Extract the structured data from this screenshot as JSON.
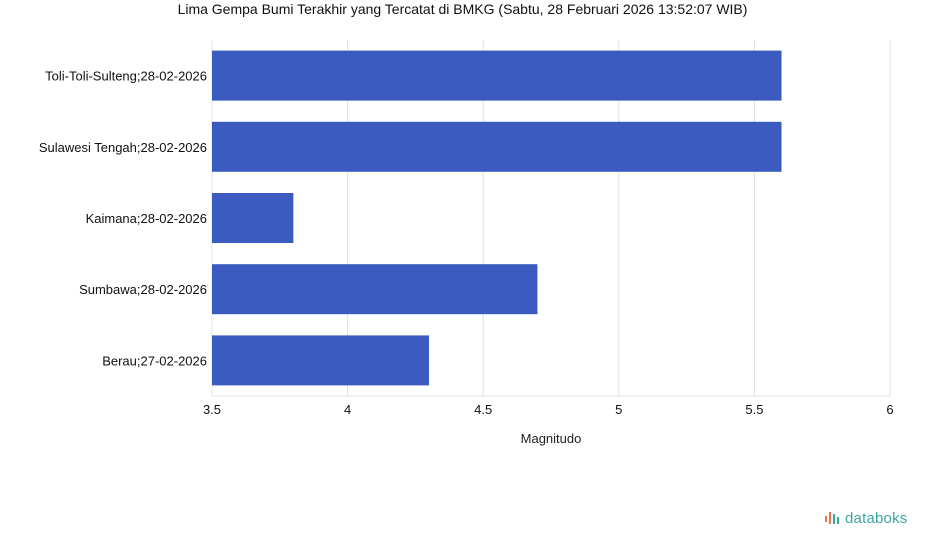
{
  "chart_data": {
    "type": "bar",
    "orientation": "horizontal",
    "title": "Lima Gempa Bumi Terakhir yang Tercatat di BMKG (Sabtu, 28 Februari 2026 13:52:07 WIB)",
    "xlabel": "Magnitudo",
    "ylabel": "",
    "categories": [
      "Toli-Toli-Sulteng;28-02-2026",
      "Sulawesi Tengah;28-02-2026",
      "Kaimana;28-02-2026",
      "Sumbawa;28-02-2026",
      "Berau;27-02-2026"
    ],
    "values": [
      5.6,
      5.6,
      3.8,
      4.7,
      4.3
    ],
    "xlim": [
      3.5,
      6
    ],
    "xticks": [
      3.5,
      4,
      4.5,
      5,
      5.5,
      6
    ],
    "xtick_labels": [
      "3.5",
      "4",
      "4.5",
      "5",
      "5.5",
      "6"
    ],
    "grid": true,
    "legend": "none",
    "bar_color": "#3b5bc1"
  },
  "brand": {
    "name": "databoks",
    "icon": "databoks-logo-icon",
    "colors": [
      "#e8734a",
      "#3aa6a6"
    ]
  }
}
